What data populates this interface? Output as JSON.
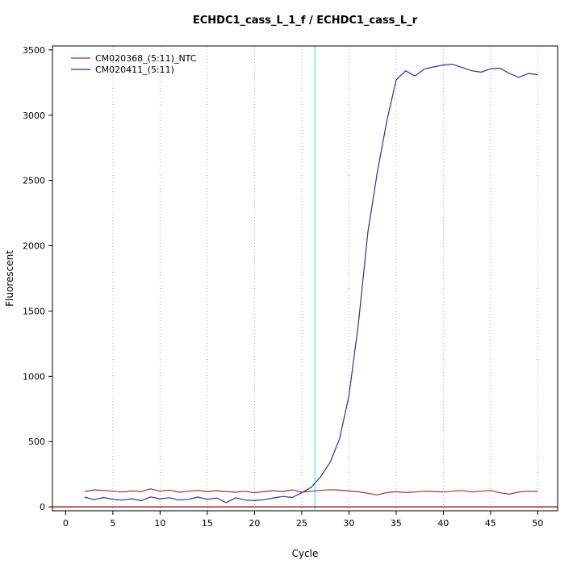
{
  "page": {
    "background": "#ffffff"
  },
  "chart_data": {
    "type": "line",
    "title": "ECHDC1_cass_L_1_f / ECHDC1_cass_L_r",
    "xlabel": "Cycle",
    "ylabel": "Fluorescent",
    "xlim": [
      -1.4,
      52.1
    ],
    "ylim": [
      -30,
      3530
    ],
    "xticks": [
      0,
      5,
      10,
      15,
      20,
      25,
      30,
      35,
      40,
      45,
      50
    ],
    "yticks": [
      0,
      500,
      1000,
      1500,
      2000,
      2500,
      3000,
      3500
    ],
    "grid": {
      "vertical_at": [
        5,
        10,
        15,
        20,
        25,
        30,
        35,
        40,
        45,
        50
      ],
      "style": "dotted",
      "color": "#aaaaaa"
    },
    "threshold_line": {
      "x": 26.4,
      "color": "#55eded"
    },
    "baseline": {
      "y": 0,
      "color": "#8b0000"
    },
    "x": [
      2,
      3,
      4,
      5,
      6,
      7,
      8,
      9,
      10,
      11,
      12,
      13,
      14,
      15,
      16,
      17,
      18,
      19,
      20,
      21,
      22,
      23,
      24,
      25,
      26,
      27,
      28,
      29,
      30,
      31,
      32,
      33,
      34,
      35,
      36,
      37,
      38,
      39,
      40,
      41,
      42,
      43,
      44,
      45,
      46,
      47,
      48,
      49,
      50
    ],
    "series": [
      {
        "name": "CM020368_(5:11)_NTC",
        "color": "#993333",
        "values": [
          118,
          130,
          126,
          120,
          114,
          122,
          118,
          138,
          120,
          128,
          112,
          120,
          126,
          118,
          124,
          118,
          112,
          120,
          108,
          118,
          124,
          118,
          130,
          112,
          120,
          126,
          132,
          128,
          122,
          116,
          104,
          92,
          110,
          116,
          110,
          114,
          120,
          118,
          114,
          120,
          126,
          114,
          120,
          126,
          108,
          98,
          114,
          120,
          118
        ]
      },
      {
        "name": "CM020411_(5:11)",
        "color": "#2f2f9e",
        "values": [
          75,
          55,
          72,
          58,
          52,
          62,
          48,
          76,
          62,
          70,
          52,
          58,
          75,
          58,
          68,
          32,
          70,
          52,
          48,
          55,
          68,
          80,
          72,
          108,
          150,
          230,
          340,
          520,
          850,
          1400,
          2100,
          2560,
          2950,
          3270,
          3340,
          3300,
          3355,
          3370,
          3385,
          3390,
          3365,
          3340,
          3330,
          3355,
          3360,
          3320,
          3290,
          3320,
          3310
        ]
      }
    ],
    "legend": {
      "position": "top-left",
      "entries": [
        "CM020368_(5:11)_NTC",
        "CM020411_(5:11)"
      ]
    }
  }
}
